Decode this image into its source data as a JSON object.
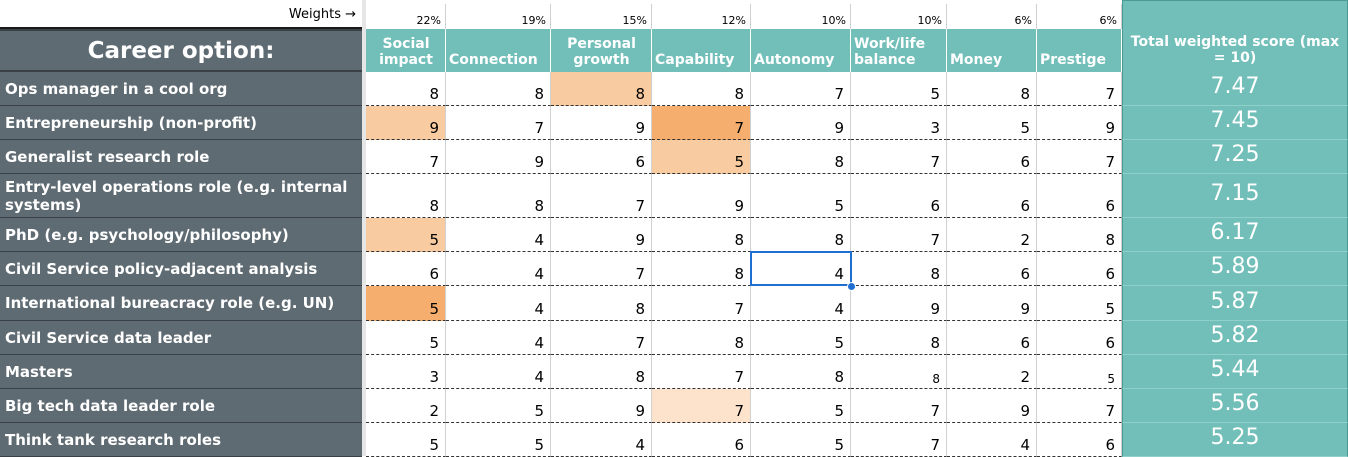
{
  "weights_label": "Weights →",
  "career_header": "Career option:",
  "criteria": [
    {
      "name": "Social impact",
      "weight": "22%"
    },
    {
      "name": "Connection",
      "weight": "19%"
    },
    {
      "name": "Personal growth",
      "weight": "15%"
    },
    {
      "name": "Capability",
      "weight": "12%"
    },
    {
      "name": "Autonomy",
      "weight": "10%"
    },
    {
      "name": "Work/life balance",
      "weight": "10%"
    },
    {
      "name": "Money",
      "weight": "6%"
    },
    {
      "name": "Prestige",
      "weight": "6%"
    }
  ],
  "total_header": "Total weighted score (max = 10)",
  "colors": {
    "label_bg": "#5f6b72",
    "header_bg": "#72bfb9",
    "highlight_light": "#f9cba0",
    "highlight_strong": "#f5ae6e",
    "highlight_pale": "#fde3cc",
    "selection": "#1f6fd1"
  },
  "rows": [
    {
      "label": "Ops manager in a cool org",
      "values": [
        "8",
        "8",
        "8",
        "8",
        "7",
        "5",
        "8",
        "7"
      ],
      "total": "7.47",
      "highlights": [
        null,
        null,
        "light",
        null,
        null,
        null,
        null,
        null
      ]
    },
    {
      "label": "Entrepreneurship (non-profit)",
      "values": [
        "9",
        "7",
        "9",
        "7",
        "9",
        "3",
        "5",
        "9"
      ],
      "total": "7.45",
      "highlights": [
        "light",
        null,
        null,
        "strong",
        null,
        null,
        null,
        null
      ]
    },
    {
      "label": "Generalist research role",
      "values": [
        "7",
        "9",
        "6",
        "5",
        "8",
        "7",
        "6",
        "7"
      ],
      "total": "7.25",
      "highlights": [
        null,
        null,
        null,
        "light",
        null,
        null,
        null,
        null
      ]
    },
    {
      "label": "Entry-level operations role (e.g. internal systems)",
      "values": [
        "8",
        "8",
        "7",
        "9",
        "5",
        "6",
        "6",
        "6"
      ],
      "total": "7.15",
      "highlights": [
        null,
        null,
        null,
        null,
        null,
        null,
        null,
        null
      ]
    },
    {
      "label": "PhD (e.g. psychology/philosophy)",
      "values": [
        "5",
        "4",
        "9",
        "8",
        "8",
        "7",
        "2",
        "8"
      ],
      "total": "6.17",
      "highlights": [
        "light",
        null,
        null,
        null,
        null,
        null,
        null,
        null
      ]
    },
    {
      "label": "Civil Service policy-adjacent analysis",
      "values": [
        "6",
        "4",
        "7",
        "8",
        "4",
        "8",
        "6",
        "6"
      ],
      "total": "5.89",
      "highlights": [
        null,
        null,
        null,
        null,
        null,
        null,
        null,
        null
      ]
    },
    {
      "label": "International bureacracy role (e.g. UN)",
      "values": [
        "5",
        "4",
        "8",
        "7",
        "4",
        "9",
        "9",
        "5"
      ],
      "total": "5.87",
      "highlights": [
        "strong",
        null,
        null,
        null,
        null,
        null,
        null,
        null
      ]
    },
    {
      "label": "Civil Service data leader",
      "values": [
        "5",
        "4",
        "7",
        "8",
        "5",
        "8",
        "6",
        "6"
      ],
      "total": "5.82",
      "highlights": [
        null,
        null,
        null,
        null,
        null,
        null,
        null,
        null
      ]
    },
    {
      "label": "Masters",
      "values": [
        "3",
        "4",
        "8",
        "7",
        "8",
        "8",
        "2",
        "5"
      ],
      "total": "5.44",
      "highlights": [
        null,
        null,
        null,
        null,
        null,
        null,
        null,
        null
      ]
    },
    {
      "label": "Big tech data leader role",
      "values": [
        "2",
        "5",
        "9",
        "7",
        "5",
        "7",
        "9",
        "7"
      ],
      "total": "5.56",
      "highlights": [
        null,
        null,
        null,
        "pale",
        null,
        null,
        null,
        null
      ]
    },
    {
      "label": "Think tank research roles",
      "values": [
        "5",
        "5",
        "4",
        "6",
        "5",
        "7",
        "4",
        "6"
      ],
      "total": "5.25",
      "highlights": [
        null,
        null,
        null,
        null,
        null,
        null,
        null,
        null
      ]
    }
  ],
  "selected_cell": {
    "row": 5,
    "col": 4
  }
}
